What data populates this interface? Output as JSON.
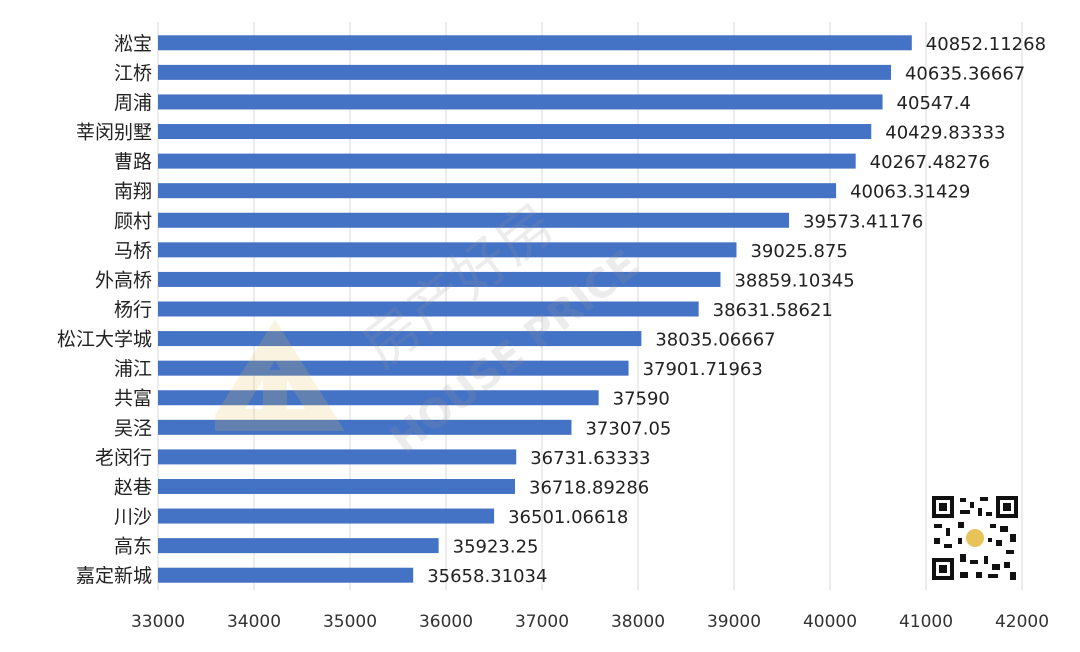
{
  "chart_data": {
    "type": "bar",
    "orientation": "horizontal",
    "title": "",
    "xlabel": "",
    "ylabel": "",
    "xlim": [
      33000,
      42000
    ],
    "xticks": [
      33000,
      34000,
      35000,
      36000,
      37000,
      38000,
      39000,
      40000,
      41000,
      42000
    ],
    "grid": "vertical",
    "categories": [
      "淞宝",
      "江桥",
      "周浦",
      "莘闵别墅",
      "曹路",
      "南翔",
      "顾村",
      "马桥",
      "外高桥",
      "杨行",
      "松江大学城",
      "浦江",
      "共富",
      "吴泾",
      "老闵行",
      "赵巷",
      "川沙",
      "高东",
      "嘉定新城"
    ],
    "values": [
      40852.11268,
      40635.36667,
      40547.4,
      40429.83333,
      40267.48276,
      40063.31429,
      39573.41176,
      39025.875,
      38859.10345,
      38631.58621,
      38035.06667,
      37901.71963,
      37590,
      37307.05,
      36731.63333,
      36718.89286,
      36501.06618,
      35923.25,
      35658.31034
    ],
    "value_labels": [
      "40852.11268",
      "40635.36667",
      "40547.4",
      "40429.83333",
      "40267.48276",
      "40063.31429",
      "39573.41176",
      "39025.875",
      "38859.10345",
      "38631.58621",
      "38035.06667",
      "37901.71963",
      "37590",
      "37307.05",
      "36731.63333",
      "36718.89286",
      "36501.06618",
      "35923.25",
      "35658.31034"
    ],
    "bar_color": "#4472c4",
    "grid_color": "#d9d9d9"
  },
  "watermark": {
    "text_cn": "房产好房",
    "text_en": "HOUSE PRICE",
    "color": "#b0b0b0",
    "logo_color": "#e8c35a"
  }
}
